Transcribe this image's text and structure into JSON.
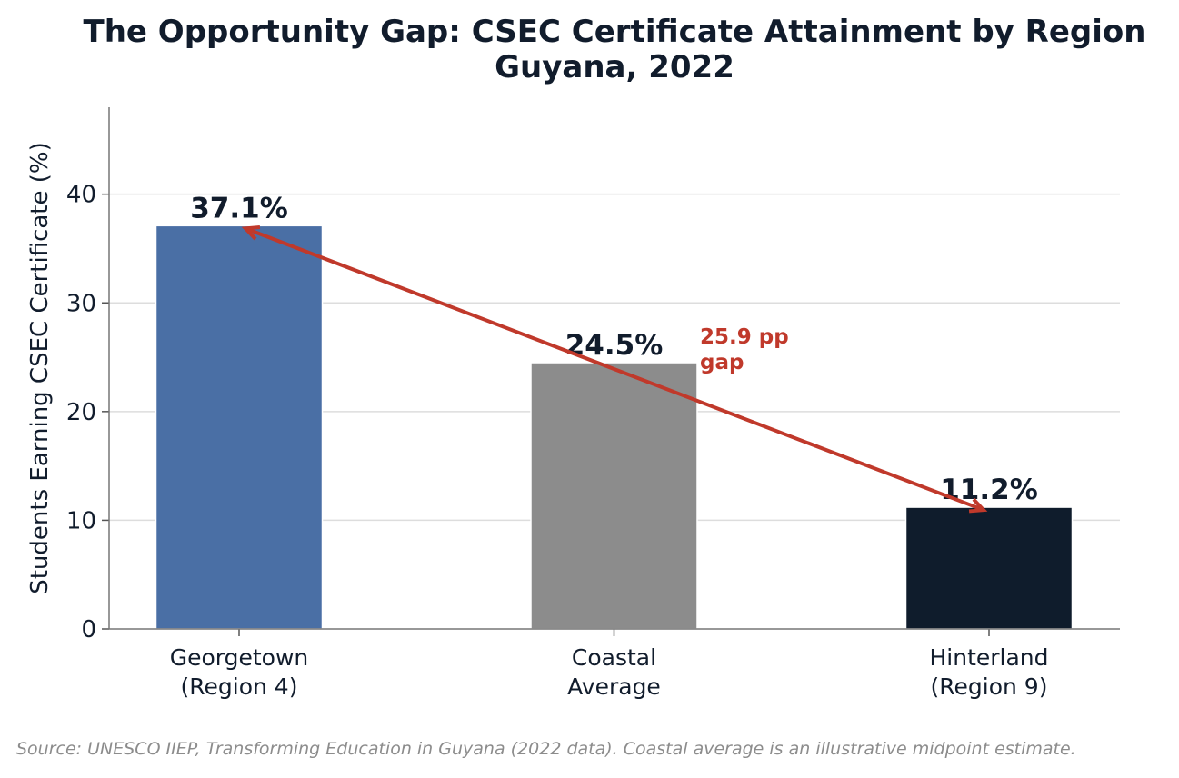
{
  "chart_data": {
    "type": "bar",
    "title": "The Opportunity Gap: CSEC Certificate Attainment by Region",
    "subtitle": "Guyana, 2022",
    "ylabel": "Students Earning CSEC Certificate (%)",
    "xlabel": "",
    "categories": [
      [
        "Georgetown",
        "(Region 4)"
      ],
      [
        "Coastal",
        "Average"
      ],
      [
        "Hinterland",
        "(Region 9)"
      ]
    ],
    "values": [
      37.1,
      24.5,
      11.2
    ],
    "data_labels": [
      "37.1%",
      "24.5%",
      "11.2%"
    ],
    "colors": [
      "#4a6fa5",
      "#8c8c8c",
      "#0f1c2c"
    ],
    "ylim": [
      0,
      48
    ],
    "yticks": [
      0,
      10,
      20,
      30,
      40
    ],
    "grid": "horizontal",
    "annotation": {
      "lines": [
        "25.9 pp",
        "gap"
      ],
      "color": "#c0392b",
      "arrow_from": {
        "category": 2,
        "value": 11.2
      },
      "arrow_to": {
        "category": 0,
        "value": 37.1
      }
    },
    "source": "Source: UNESCO IIEP, Transforming Education in Guyana (2022 data). Coastal average is an illustrative midpoint estimate."
  }
}
